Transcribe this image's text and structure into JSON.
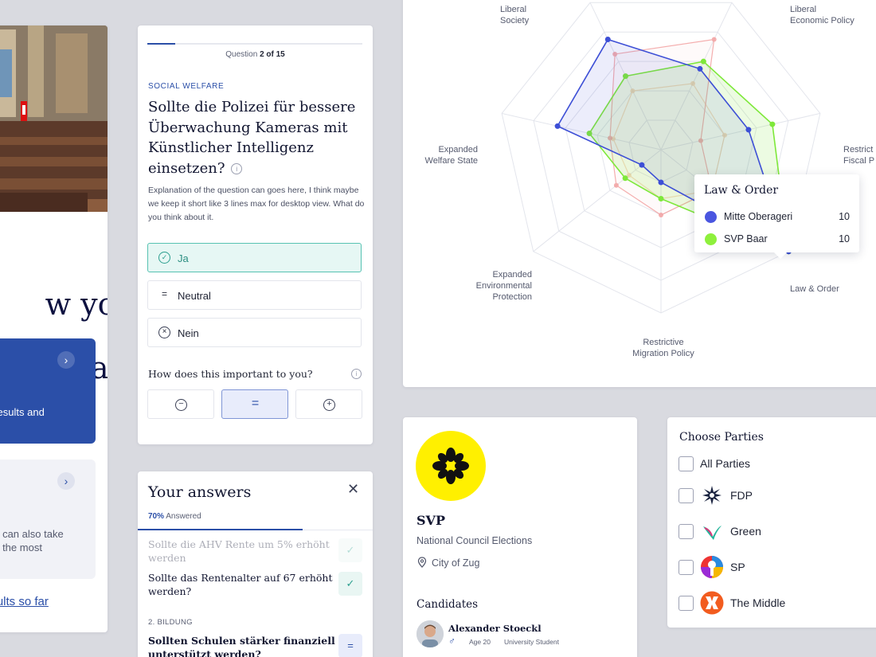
{
  "left": {
    "heading_line1": "w you",
    "heading_line2": "art",
    "blue_panel_text": "t results and",
    "grey_panel_text_line1": "ou can also take",
    "grey_panel_text_line2": "ed the most",
    "results_link": "esults so far"
  },
  "question": {
    "progress_prefix": "Question",
    "progress_value": "2 of 15",
    "progress_fraction": 0.13,
    "category": "SOCIAL WELFARE",
    "title": "Sollte die Polizei für bessere Überwachung Kameras mit Künstlicher Intelligenz einsetzen?",
    "explanation": "Explanation of the question can goes here, I think maybe we keep it short like 3 lines max for desktop view. What do you think about it.",
    "options": [
      "Ja",
      "Neutral",
      "Nein"
    ],
    "selected_option": "Ja",
    "importance_label": "How does this important to you?",
    "importance_selected": "equal"
  },
  "answers": {
    "title": "Your answers",
    "percent": "70%",
    "percent_label": "Answered",
    "items": [
      "Sollte die AHV Rente um 5% erhöht werden",
      "Sollte das Rentenalter auf 67 erhöht werden?",
      "Sollten Schulen stärker finanziell unterstützt werden?"
    ],
    "section": "2. BILDUNG"
  },
  "radar": {
    "axes": [
      "Liberal Economic Policy",
      "Restrictive Fiscal Policy",
      "Law & Order",
      "Restrictive Migration Policy",
      "Expanded Environmental Protection",
      "Expanded Welfare State",
      "Liberal Society"
    ],
    "axis_labels_visible": [
      "Liberal\nEconomic Policy",
      "Restrict\nFiscal P",
      "Law & Order",
      "Restrictive\nMigration Policy",
      "Expanded\nEnvironmental\nProtection",
      "Expanded\nWelfare State",
      "Liberal\nSociety"
    ],
    "tooltip": {
      "title": "Law & Order",
      "rows": [
        {
          "name": "Mitte Oberageri",
          "value": "10",
          "color": "#4a56e0"
        },
        {
          "name": "SVP Baar",
          "value": "10",
          "color": "#8ef03c"
        }
      ]
    },
    "colors": {
      "mitte": "#3d4fd6",
      "svp": "#7ee83a",
      "red": "#f29a9a",
      "orange": "#f5c49a"
    }
  },
  "chart_data": {
    "type": "radar",
    "axes": [
      "Liberal Society",
      "Liberal Economic Policy",
      "Restrictive Fiscal Policy",
      "Law & Order",
      "Restrictive Migration Policy",
      "Expanded Environmental Protection",
      "Expanded Welfare State"
    ],
    "range": [
      0,
      10
    ],
    "series": [
      {
        "name": "Mitte Oberageri",
        "values": [
          7.5,
          5.5,
          5.5,
          10,
          2,
          1.5,
          6.5
        ]
      },
      {
        "name": "SVP Baar",
        "values": [
          5,
          6,
          7,
          10,
          3,
          2.8,
          4.5
        ]
      },
      {
        "name": "",
        "values": [
          6.5,
          7.5,
          2.5,
          4,
          4,
          3.5,
          3.2
        ]
      },
      {
        "name": "",
        "values": [
          4,
          4.5,
          4,
          4,
          3,
          2.5,
          3
        ]
      }
    ]
  },
  "party": {
    "name": "SVP",
    "election": "National Council Elections",
    "city": "City of Zug",
    "candidates_title": "Candidates",
    "candidate": {
      "name": "Alexander Stoeckl",
      "gender": "♂",
      "age": "Age 20",
      "job": "University Student"
    },
    "logo_color": "#fff000"
  },
  "choose": {
    "title": "Choose Parties",
    "all_label": "All Parties",
    "parties": [
      {
        "label": "FDP",
        "icon": "fdp-logo-icon"
      },
      {
        "label": "Green",
        "icon": "green-logo-icon"
      },
      {
        "label": "SP",
        "icon": "sp-logo-icon"
      },
      {
        "label": "The Middle",
        "icon": "middle-logo-icon"
      }
    ]
  }
}
